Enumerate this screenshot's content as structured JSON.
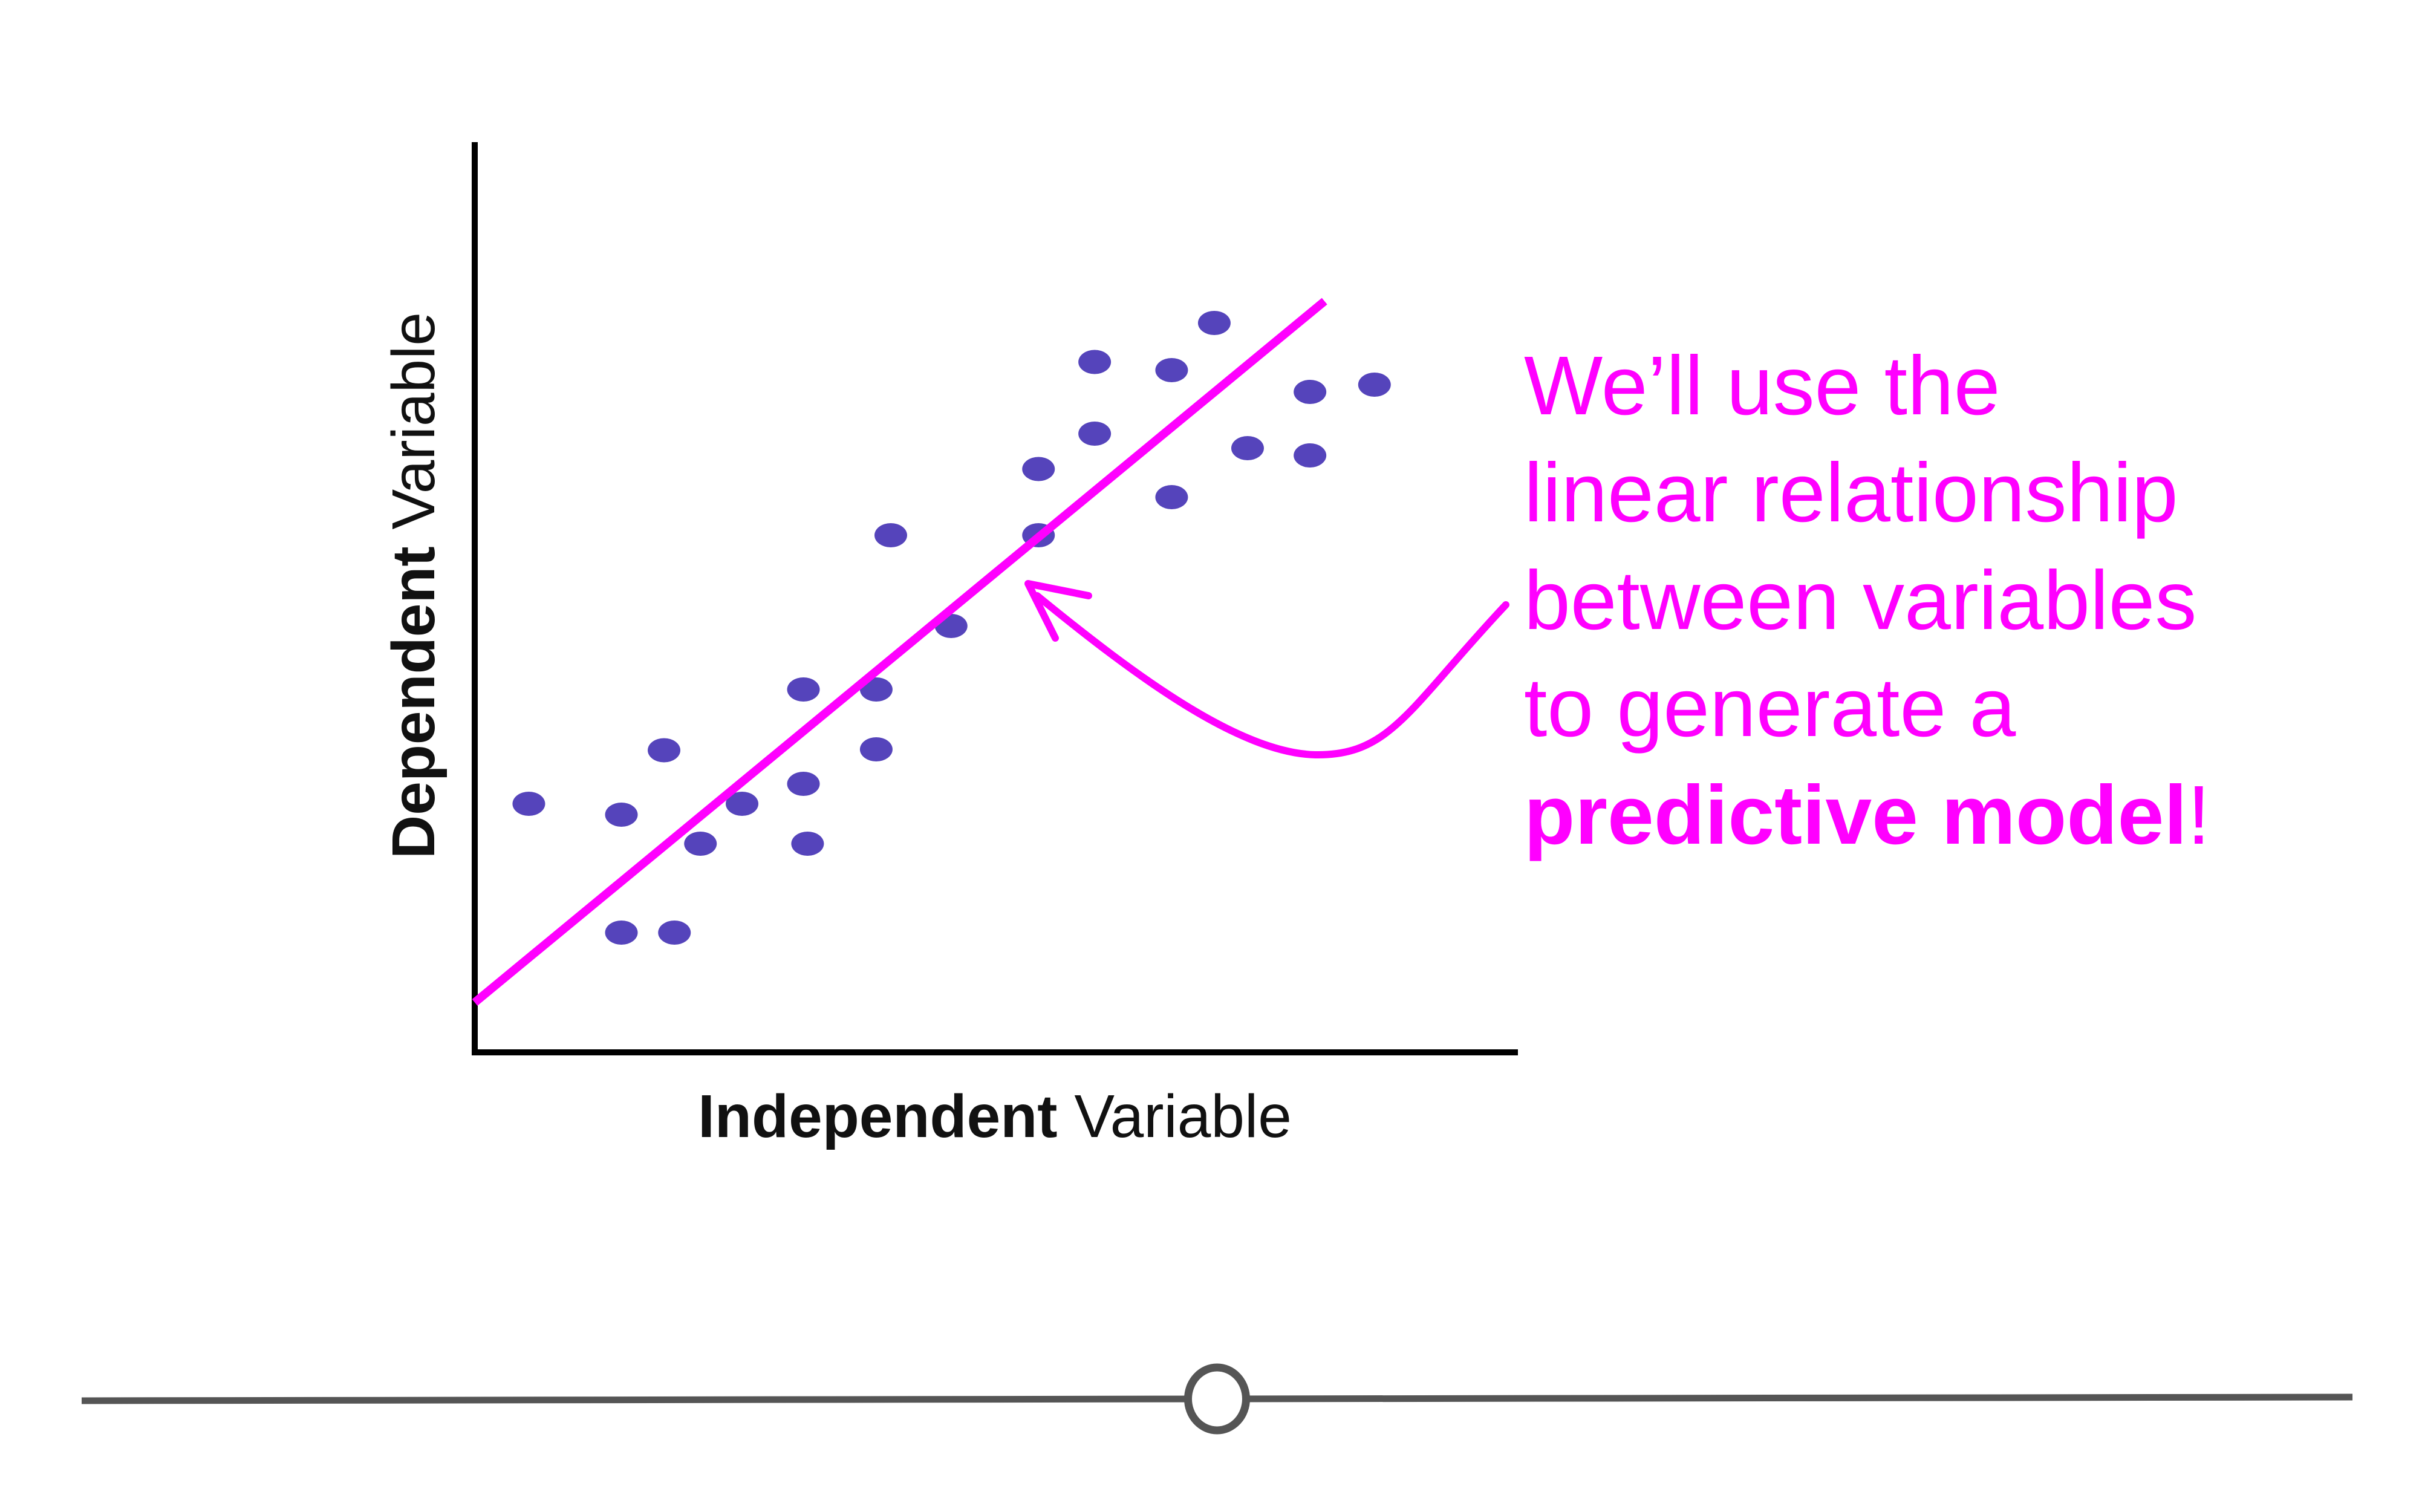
{
  "colors": {
    "axis": "#000000",
    "points": "#5544bb",
    "regression_line": "#ff00ff",
    "annotation": "#ff00ff",
    "slider_track": "#555555",
    "slider_handle_fill": "#ffffff"
  },
  "annotation": {
    "line1": "We’ll use the",
    "line2": "linear relationship",
    "line3": "between variables",
    "line4": "to generate a",
    "line5_bold": "predictive model",
    "line5_tail": "!"
  },
  "slider": {
    "value": 0.5
  },
  "chart_data": {
    "type": "scatter",
    "title": "",
    "xlabel_bold": "Independent",
    "xlabel_rest": " Variable",
    "ylabel_bold": "Dependent",
    "ylabel_rest": " Variable",
    "xlim": [
      0,
      10
    ],
    "ylim": [
      0,
      10
    ],
    "grid": false,
    "legend": "none",
    "points": [
      {
        "x": 0.52,
        "y": 2.74
      },
      {
        "x": 1.41,
        "y": 1.32
      },
      {
        "x": 1.41,
        "y": 2.62
      },
      {
        "x": 1.82,
        "y": 3.33
      },
      {
        "x": 1.92,
        "y": 1.32
      },
      {
        "x": 2.17,
        "y": 2.3
      },
      {
        "x": 2.57,
        "y": 2.74
      },
      {
        "x": 3.16,
        "y": 2.96
      },
      {
        "x": 3.16,
        "y": 4.0
      },
      {
        "x": 3.2,
        "y": 2.3
      },
      {
        "x": 3.86,
        "y": 3.34
      },
      {
        "x": 3.86,
        "y": 4.0
      },
      {
        "x": 4.0,
        "y": 5.7
      },
      {
        "x": 4.58,
        "y": 4.7
      },
      {
        "x": 5.42,
        "y": 6.43
      },
      {
        "x": 5.42,
        "y": 5.7
      },
      {
        "x": 5.96,
        "y": 6.82
      },
      {
        "x": 5.96,
        "y": 7.61
      },
      {
        "x": 6.7,
        "y": 7.52
      },
      {
        "x": 6.7,
        "y": 6.12
      },
      {
        "x": 7.11,
        "y": 8.04
      },
      {
        "x": 7.43,
        "y": 6.66
      },
      {
        "x": 8.03,
        "y": 6.58
      },
      {
        "x": 8.03,
        "y": 7.28
      },
      {
        "x": 8.65,
        "y": 7.36
      }
    ],
    "fit_line": {
      "x": [
        0.0,
        8.17
      ],
      "y": [
        0.55,
        8.28
      ]
    }
  }
}
